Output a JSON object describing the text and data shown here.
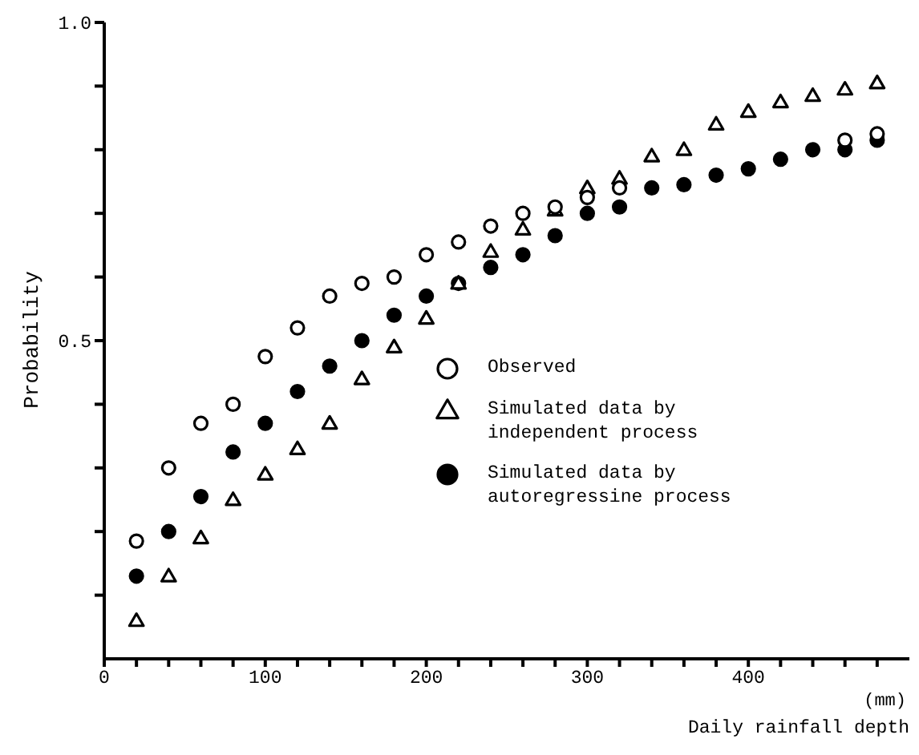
{
  "chart_data": {
    "type": "scatter",
    "xlabel": "Daily rainfall depth",
    "ylabel": "Probability",
    "annotations": [
      "(mm)"
    ],
    "x": [
      20,
      40,
      60,
      80,
      100,
      120,
      140,
      160,
      180,
      200,
      220,
      240,
      260,
      280,
      300,
      320,
      340,
      360,
      380,
      400,
      420,
      440,
      460,
      480
    ],
    "series": [
      {
        "name": "Observed",
        "color": "#000000",
        "marker": "circle",
        "values": [
          0.185,
          0.3,
          0.37,
          0.4,
          0.475,
          0.52,
          0.57,
          0.59,
          0.6,
          0.635,
          0.655,
          0.68,
          0.7,
          0.71,
          0.725,
          0.74,
          null,
          null,
          null,
          null,
          null,
          null,
          0.815,
          0.825
        ]
      },
      {
        "name": "Simulated data by independent process",
        "color": "#000000",
        "marker": "triangle",
        "values": [
          0.06,
          0.13,
          0.19,
          0.25,
          0.29,
          0.33,
          0.37,
          0.44,
          0.49,
          0.535,
          0.59,
          0.64,
          0.675,
          0.705,
          0.74,
          0.755,
          0.79,
          0.8,
          0.84,
          0.86,
          0.875,
          0.885,
          0.895,
          0.905
        ]
      },
      {
        "name": "Simulated data by autoregressine process",
        "color": "#000000",
        "marker": "circle",
        "values": [
          0.13,
          0.2,
          0.255,
          0.325,
          0.37,
          0.42,
          0.46,
          0.5,
          0.54,
          0.57,
          0.59,
          0.615,
          0.635,
          0.665,
          0.7,
          0.71,
          0.74,
          0.745,
          0.76,
          0.77,
          0.785,
          0.8,
          0.8,
          0.815
        ]
      }
    ],
    "xlim": [
      0,
      500
    ],
    "xticks": [
      0,
      {
        "value": 20,
        "label": null
      },
      {
        "value": 40,
        "label": null
      },
      {
        "value": 60,
        "label": null
      },
      {
        "value": 80,
        "label": null
      },
      100,
      {
        "value": 120,
        "label": null
      },
      {
        "value": 140,
        "label": null
      },
      {
        "value": 160,
        "label": null
      },
      {
        "value": 180,
        "label": null
      },
      200,
      {
        "value": 220,
        "label": null
      },
      {
        "value": 240,
        "label": null
      },
      {
        "value": 260,
        "label": null
      },
      {
        "value": 280,
        "label": null
      },
      300,
      {
        "value": 320,
        "label": null
      },
      {
        "value": 340,
        "label": null
      },
      {
        "value": 360,
        "label": null
      },
      {
        "value": 380,
        "label": null
      },
      400,
      {
        "value": 420,
        "label": null
      },
      {
        "value": 440,
        "label": null
      },
      {
        "value": 460,
        "label": null
      },
      {
        "value": 480,
        "label": null
      }
    ],
    "ylim": [
      0,
      1
    ],
    "yticks": [
      {
        "value": 0.1,
        "label": null
      },
      {
        "value": 0.2,
        "label": null
      },
      {
        "value": 0.3,
        "label": null
      },
      {
        "value": 0.4,
        "label": null
      },
      0.5,
      {
        "value": 0.6,
        "label": null
      },
      {
        "value": 0.7,
        "label": null
      },
      {
        "value": 0.8,
        "label": null
      },
      {
        "value": 0.9,
        "label": null
      },
      {
        "value": 1.0,
        "label": "1.0"
      }
    ],
    "grid": false,
    "legend": "right"
  }
}
